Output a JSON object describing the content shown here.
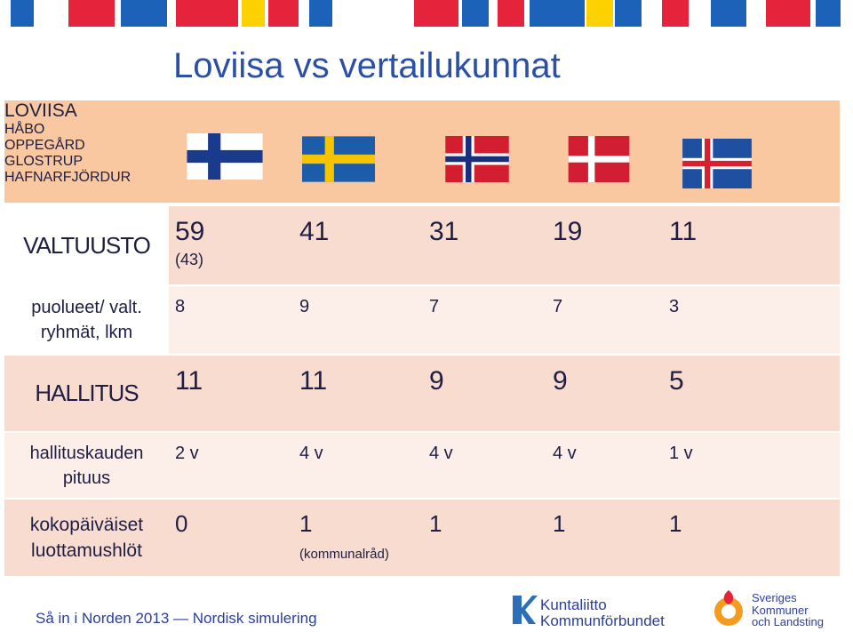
{
  "title": "Loviisa vs vertailukunnat",
  "table": {
    "columns": [
      "LOVIISA",
      "HÅBO",
      "OPPEGÅRD",
      "GLOSTRUP",
      "HAFNARFJÖRDUR"
    ],
    "rows": [
      {
        "label": [
          "VALTUUSTO"
        ],
        "cells": [
          {
            "text": "59",
            "note": "(43)"
          },
          {
            "text": "41"
          },
          {
            "text": "31"
          },
          {
            "text": "19"
          },
          {
            "text": "11"
          }
        ]
      },
      {
        "label": [
          "puolueet/ valt.",
          "ryhmät, lkm"
        ],
        "cells": [
          {
            "text": "8"
          },
          {
            "text": "9"
          },
          {
            "text": "7"
          },
          {
            "text": "7"
          },
          {
            "text": "3"
          }
        ]
      },
      {
        "label": [
          "HALLITUS"
        ],
        "cells": [
          {
            "text": "11"
          },
          {
            "text": "11"
          },
          {
            "text": "9"
          },
          {
            "text": "9"
          },
          {
            "text": "5"
          }
        ]
      },
      {
        "label": [
          "hallituskauden",
          "pituus"
        ],
        "cells": [
          {
            "text": "2 v"
          },
          {
            "text": "4 v"
          },
          {
            "text": "4 v"
          },
          {
            "text": "4 v"
          },
          {
            "text": "1 v"
          }
        ]
      },
      {
        "label": [
          "kokopäiväiset",
          "luottamushlöt"
        ],
        "cells": [
          {
            "text": "0"
          },
          {
            "text": "1",
            "note": "(kommunalråd)"
          },
          {
            "text": "1"
          },
          {
            "text": "1"
          },
          {
            "text": "1"
          }
        ]
      }
    ]
  },
  "footer": "Så in i Norden 2013 — Nordisk simulering",
  "logos": [
    [
      "Kuntaliitto",
      "Kommunförbundet"
    ],
    [
      "Sveriges",
      "Kommuner",
      "och Landsting"
    ]
  ]
}
